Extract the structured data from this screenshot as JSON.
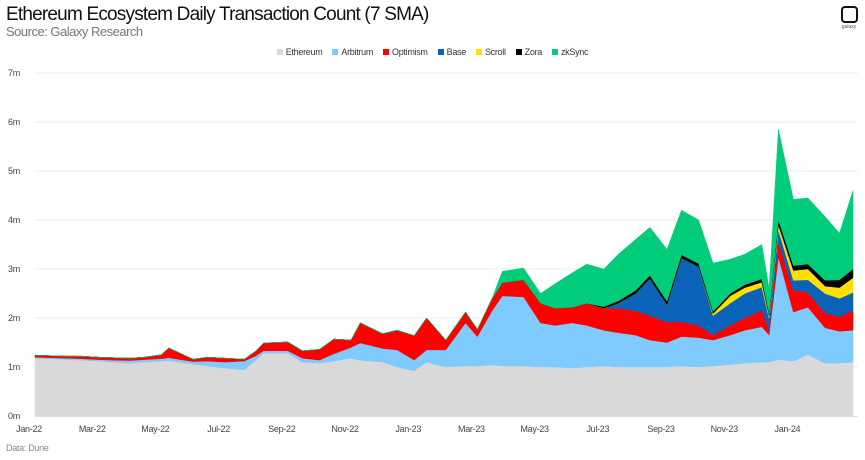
{
  "chart_data": {
    "type": "area",
    "stacked": true,
    "title": "Ethereum Ecosystem Daily Transaction Count (7 SMA)",
    "subtitle": "Source: Galaxy Research",
    "footer": "Data: Dune",
    "logo_text": "galaxy",
    "xlabel": "",
    "ylabel": "",
    "ylim": [
      0,
      7
    ],
    "y_ticks": [
      "0m",
      "1m",
      "2m",
      "3m",
      "4m",
      "5m",
      "6m",
      "7m"
    ],
    "x_ticks": [
      {
        "date": "2022-01-01",
        "label": "Jan-22"
      },
      {
        "date": "2022-03-01",
        "label": "Mar-22"
      },
      {
        "date": "2022-05-01",
        "label": "May-22"
      },
      {
        "date": "2022-07-01",
        "label": "Jul-22"
      },
      {
        "date": "2022-09-01",
        "label": "Sep-22"
      },
      {
        "date": "2022-11-01",
        "label": "Nov-22"
      },
      {
        "date": "2023-01-01",
        "label": "Jan-23"
      },
      {
        "date": "2023-03-01",
        "label": "Mar-23"
      },
      {
        "date": "2023-05-01",
        "label": "May-23"
      },
      {
        "date": "2023-07-01",
        "label": "Jul-23"
      },
      {
        "date": "2023-09-01",
        "label": "Sep-23"
      },
      {
        "date": "2023-11-01",
        "label": "Nov-23"
      },
      {
        "date": "2024-01-01",
        "label": "Jan-24"
      }
    ],
    "grid": true,
    "legend_position": "top-center",
    "unit": "millions of transactions",
    "x": [
      "2022-01-01",
      "2022-01-15",
      "2022-02-01",
      "2022-02-15",
      "2022-03-01",
      "2022-03-15",
      "2022-04-01",
      "2022-04-15",
      "2022-05-01",
      "2022-05-08",
      "2022-06-01",
      "2022-06-15",
      "2022-07-01",
      "2022-07-20",
      "2022-08-01",
      "2022-08-08",
      "2022-09-01",
      "2022-09-15",
      "2022-10-01",
      "2022-10-15",
      "2022-11-01",
      "2022-11-10",
      "2022-12-01",
      "2022-12-15",
      "2023-01-01",
      "2023-01-13",
      "2023-02-01",
      "2023-02-20",
      "2023-03-01",
      "2023-03-15",
      "2023-03-25",
      "2023-04-15",
      "2023-05-01",
      "2023-05-15",
      "2023-06-01",
      "2023-06-15",
      "2023-07-01",
      "2023-07-15",
      "2023-08-01",
      "2023-08-15",
      "2023-09-01",
      "2023-09-15",
      "2023-10-01",
      "2023-10-15",
      "2023-11-01",
      "2023-11-15",
      "2023-12-01",
      "2023-12-08",
      "2023-12-17",
      "2024-01-01",
      "2024-01-15",
      "2024-02-01",
      "2024-02-15",
      "2024-02-28"
    ],
    "series": [
      {
        "name": "Ethereum",
        "color": "#d9d9d9",
        "values": [
          1.18,
          1.17,
          1.15,
          1.14,
          1.12,
          1.1,
          1.08,
          1.1,
          1.12,
          1.13,
          1.06,
          1.02,
          0.98,
          0.94,
          1.15,
          1.28,
          1.28,
          1.1,
          1.08,
          1.12,
          1.18,
          1.14,
          1.1,
          1.0,
          0.92,
          1.1,
          1.0,
          1.02,
          1.02,
          1.04,
          1.02,
          1.02,
          1.0,
          1.0,
          0.98,
          1.0,
          1.02,
          1.0,
          1.0,
          1.0,
          1.0,
          1.02,
          1.0,
          1.02,
          1.05,
          1.08,
          1.1,
          1.1,
          1.15,
          1.12,
          1.25,
          1.08,
          1.08,
          1.1
        ]
      },
      {
        "name": "Arbitrum",
        "color": "#7fcbff",
        "values": [
          0.02,
          0.02,
          0.03,
          0.03,
          0.03,
          0.04,
          0.05,
          0.05,
          0.05,
          0.06,
          0.05,
          0.1,
          0.12,
          0.18,
          0.08,
          0.05,
          0.05,
          0.08,
          0.06,
          0.15,
          0.22,
          0.35,
          0.28,
          0.35,
          0.22,
          0.25,
          0.35,
          0.88,
          0.6,
          1.1,
          1.43,
          1.41,
          0.9,
          0.85,
          0.92,
          0.85,
          0.73,
          0.7,
          0.65,
          0.55,
          0.5,
          0.6,
          0.6,
          0.53,
          0.6,
          0.67,
          0.72,
          0.55,
          2.1,
          1.0,
          0.97,
          0.72,
          0.65,
          0.65
        ]
      },
      {
        "name": "Optimism",
        "color": "#ff0000",
        "values": [
          0.04,
          0.04,
          0.04,
          0.05,
          0.05,
          0.05,
          0.05,
          0.05,
          0.08,
          0.2,
          0.05,
          0.08,
          0.08,
          0.04,
          0.1,
          0.16,
          0.18,
          0.15,
          0.22,
          0.3,
          0.15,
          0.41,
          0.3,
          0.4,
          0.5,
          0.65,
          0.2,
          0.22,
          0.15,
          0.25,
          0.27,
          0.35,
          0.4,
          0.35,
          0.32,
          0.45,
          0.45,
          0.5,
          0.5,
          0.5,
          0.42,
          0.3,
          0.25,
          0.1,
          0.2,
          0.25,
          0.34,
          0.1,
          0.3,
          0.45,
          0.3,
          0.3,
          0.3,
          0.4
        ]
      },
      {
        "name": "Base",
        "color": "#0a63b8",
        "values": [
          0,
          0,
          0,
          0,
          0,
          0,
          0,
          0,
          0,
          0,
          0,
          0,
          0,
          0,
          0,
          0,
          0,
          0,
          0,
          0,
          0,
          0,
          0,
          0,
          0,
          0,
          0,
          0,
          0,
          0,
          0,
          0,
          0,
          0,
          0,
          0,
          0,
          0.1,
          0.35,
          0.75,
          0.35,
          1.3,
          1.2,
          0.4,
          0.45,
          0.5,
          0.47,
          0.25,
          0.25,
          0.2,
          0.26,
          0.4,
          0.37,
          0.37
        ]
      },
      {
        "name": "Scroll",
        "color": "#ffe000",
        "values": [
          0,
          0,
          0,
          0,
          0,
          0,
          0,
          0,
          0,
          0,
          0,
          0,
          0,
          0,
          0,
          0,
          0,
          0,
          0,
          0,
          0,
          0,
          0,
          0,
          0,
          0,
          0,
          0,
          0,
          0,
          0,
          0,
          0,
          0,
          0,
          0,
          0,
          0,
          0,
          0,
          0,
          0,
          0,
          0.04,
          0.15,
          0.12,
          0.1,
          0.05,
          0.1,
          0.2,
          0.22,
          0.15,
          0.22,
          0.3
        ]
      },
      {
        "name": "Zora",
        "color": "#000000",
        "values": [
          0,
          0,
          0,
          0,
          0,
          0,
          0,
          0,
          0,
          0,
          0,
          0,
          0,
          0,
          0,
          0,
          0,
          0,
          0,
          0,
          0,
          0,
          0,
          0,
          0,
          0,
          0,
          0,
          0,
          0,
          0,
          0,
          0,
          0,
          0,
          0,
          0.03,
          0.05,
          0.06,
          0.07,
          0.07,
          0.07,
          0.06,
          0.04,
          0.05,
          0.06,
          0.07,
          0.05,
          0.1,
          0.1,
          0.1,
          0.12,
          0.16,
          0.18
        ]
      },
      {
        "name": "zkSync",
        "color": "#00cc7a",
        "values": [
          0,
          0,
          0,
          0,
          0,
          0,
          0,
          0,
          0,
          0,
          0,
          0,
          0,
          0,
          0,
          0,
          0,
          0,
          0,
          0,
          0,
          0,
          0,
          0,
          0,
          0,
          0,
          0,
          0,
          0,
          0.23,
          0.24,
          0.2,
          0.5,
          0.7,
          0.8,
          0.77,
          0.95,
          1.04,
          0.98,
          1.06,
          0.91,
          0.89,
          0.99,
          0.7,
          0.62,
          0.7,
          0.5,
          1.85,
          1.35,
          1.35,
          1.3,
          0.95,
          1.6
        ]
      }
    ]
  }
}
